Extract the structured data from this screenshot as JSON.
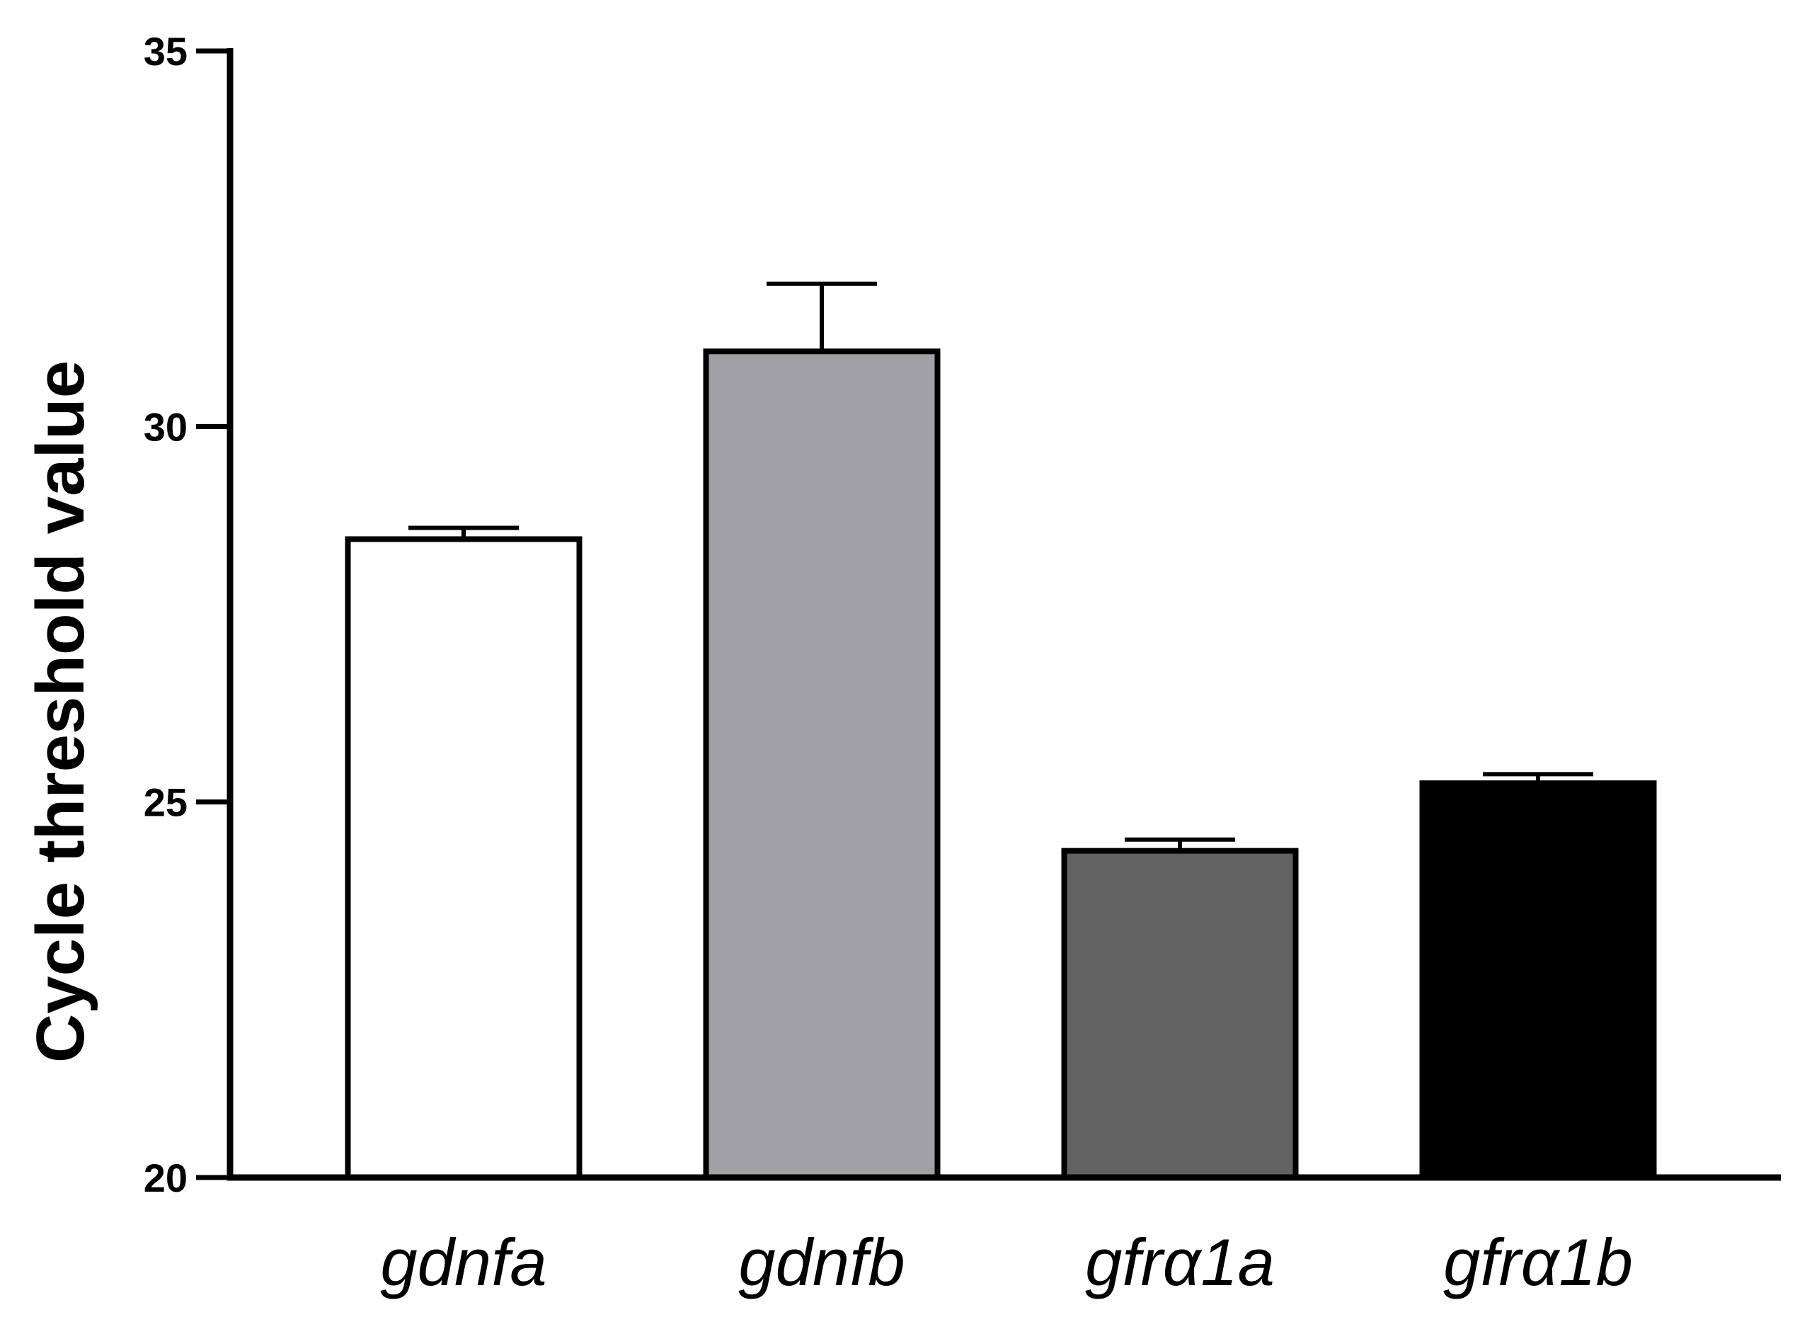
{
  "chart_data": {
    "type": "bar",
    "title": "",
    "xlabel": "",
    "ylabel": "Cycle threshold value",
    "ylim": [
      20,
      35
    ],
    "yticks": [
      20,
      25,
      30,
      35
    ],
    "ytick_labels": [
      "20",
      "25",
      "30",
      "35"
    ],
    "categories": [
      "gdnfa",
      "gdnfb",
      "gfrα1a",
      "gfrα1b"
    ],
    "values": [
      28.5,
      31.0,
      24.35,
      25.25
    ],
    "errors": [
      0.15,
      0.9,
      0.15,
      0.12
    ],
    "colors": [
      "#ffffff",
      "#a1a0a5",
      "#626262",
      "#000000"
    ],
    "grid": false,
    "legend": "none"
  }
}
